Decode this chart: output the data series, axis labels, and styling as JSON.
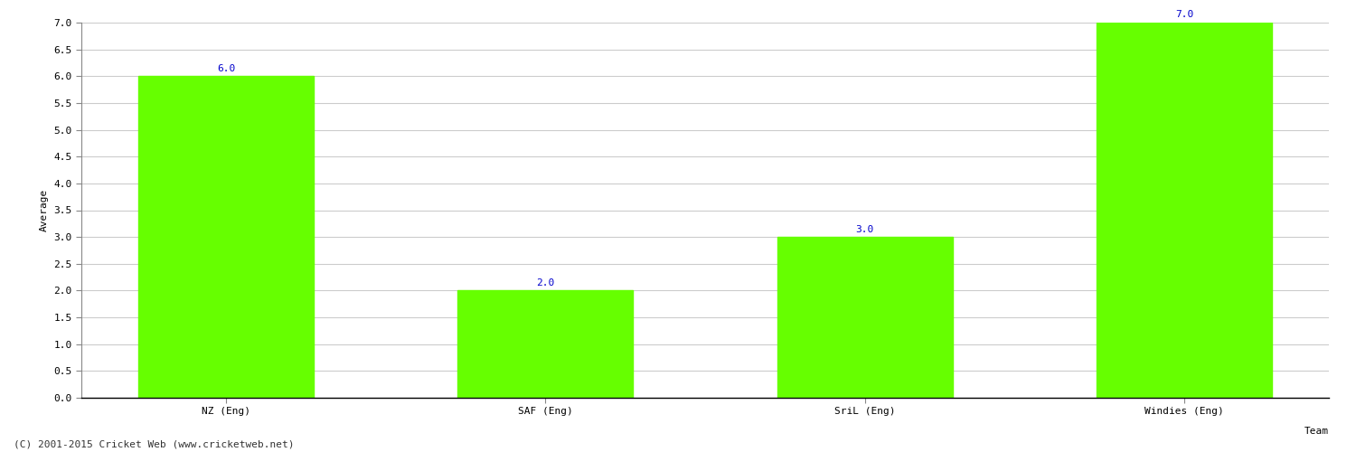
{
  "categories": [
    "NZ (Eng)",
    "SAF (Eng)",
    "SriL (Eng)",
    "Windies (Eng)"
  ],
  "values": [
    6.0,
    2.0,
    3.0,
    7.0
  ],
  "bar_color": "#66ff00",
  "bar_edge_color": "#66ff00",
  "xlabel": "Team",
  "ylabel": "Average",
  "ylim": [
    0,
    7.0
  ],
  "yticks": [
    0.0,
    0.5,
    1.0,
    1.5,
    2.0,
    2.5,
    3.0,
    3.5,
    4.0,
    4.5,
    5.0,
    5.5,
    6.0,
    6.5,
    7.0
  ],
  "annotation_color": "#0000cc",
  "annotation_fontsize": 8,
  "axis_label_fontsize": 8,
  "tick_fontsize": 8,
  "grid_color": "#cccccc",
  "bg_color": "#ffffff",
  "copyright_text": "(C) 2001-2015 Cricket Web (www.cricketweb.net)",
  "copyright_fontsize": 8,
  "bar_width": 0.55
}
